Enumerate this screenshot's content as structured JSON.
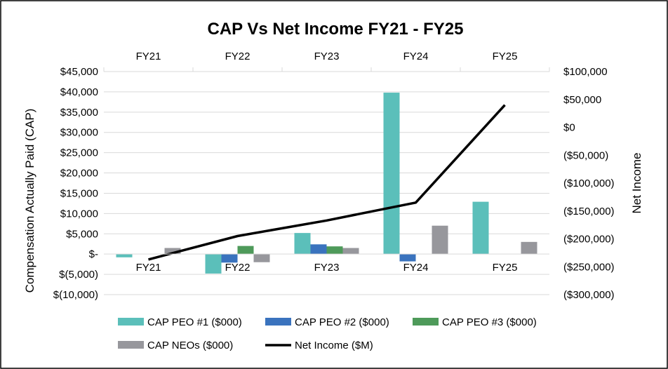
{
  "chart_data": {
    "type": "bar",
    "title": "CAP Vs Net Income FY21 - FY25",
    "categories": [
      "FY21",
      "FY22",
      "FY23",
      "FY24",
      "FY25"
    ],
    "ylabel": "Compensation Actually Paid (CAP)",
    "y2label": "Net Income",
    "ylim": [
      -10000,
      45000
    ],
    "y2lim": [
      -300000,
      100000
    ],
    "y_ticks": [
      45000,
      40000,
      35000,
      30000,
      25000,
      20000,
      15000,
      10000,
      5000,
      0,
      -5000,
      -10000
    ],
    "y_tick_labels": [
      "$45,000",
      "$40,000",
      "$35,000",
      "$30,000",
      "$25,000",
      "$20,000",
      "$15,000",
      "$10,000",
      "$5,000",
      "$-",
      "$(5,000)",
      "$(10,000)"
    ],
    "y2_ticks": [
      100000,
      50000,
      0,
      -50000,
      -100000,
      -150000,
      -200000,
      -250000,
      -300000
    ],
    "y2_tick_labels": [
      "$100,000",
      "$50,000",
      "$0",
      "($50,000)",
      "($100,000)",
      "($150,000)",
      "($200,000)",
      "($250,000)",
      "($300,000)"
    ],
    "grid": true,
    "legend_position": "bottom",
    "series": [
      {
        "name": "CAP PEO #1 ($000)",
        "type": "bar",
        "axis": "left",
        "color": "#5BBFBA",
        "values": [
          -800,
          -4800,
          5200,
          39800,
          12900
        ]
      },
      {
        "name": "CAP PEO #2 ($000)",
        "type": "bar",
        "axis": "left",
        "color": "#3A73BE",
        "values": [
          0,
          -2100,
          2400,
          -1800,
          0
        ]
      },
      {
        "name": "CAP PEO #3 ($000)",
        "type": "bar",
        "axis": "left",
        "color": "#4E9A5A",
        "values": [
          0,
          2000,
          1900,
          0,
          0
        ]
      },
      {
        "name": "CAP NEOs ($000)",
        "type": "bar",
        "axis": "left",
        "color": "#97979C",
        "values": [
          1500,
          -2000,
          1500,
          7000,
          3000
        ]
      },
      {
        "name": "Net Income ($M)",
        "type": "line",
        "axis": "right",
        "color": "#000000",
        "values": [
          -237000,
          -195000,
          -167000,
          -135000,
          40000
        ]
      }
    ]
  }
}
